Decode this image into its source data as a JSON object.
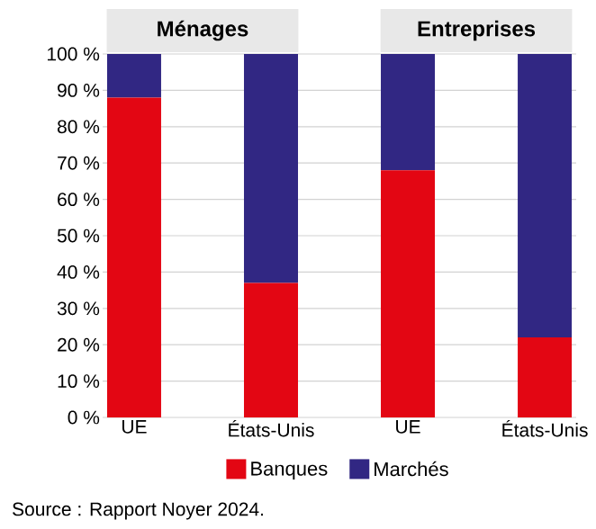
{
  "chart_data": {
    "type": "bar",
    "stacked": true,
    "categories": [
      "UE",
      "États-Unis",
      "UE",
      "États-Unis"
    ],
    "series": [
      {
        "name": "Banques",
        "color": "#e30613",
        "values": [
          88,
          37,
          68,
          22
        ]
      },
      {
        "name": "Marchés",
        "color": "#312783",
        "values": [
          12,
          63,
          32,
          78
        ]
      }
    ],
    "ylim": [
      0,
      100
    ],
    "yticks": [
      {
        "value": 0,
        "label": "0 %"
      },
      {
        "value": 10,
        "label": "10 %"
      },
      {
        "value": 20,
        "label": "20 %"
      },
      {
        "value": 30,
        "label": "30 %"
      },
      {
        "value": 40,
        "label": "40 %"
      },
      {
        "value": 50,
        "label": "50 %"
      },
      {
        "value": 60,
        "label": "60 %"
      },
      {
        "value": 70,
        "label": "70 %"
      },
      {
        "value": 80,
        "label": "80 %"
      },
      {
        "value": 90,
        "label": "90 %"
      },
      {
        "value": 100,
        "label": "100 %"
      }
    ],
    "grid": "y",
    "legend": "bottom",
    "annotations": [
      "Ménages",
      "Entreprises",
      "Source : Rapport Noyer 2024."
    ]
  }
}
